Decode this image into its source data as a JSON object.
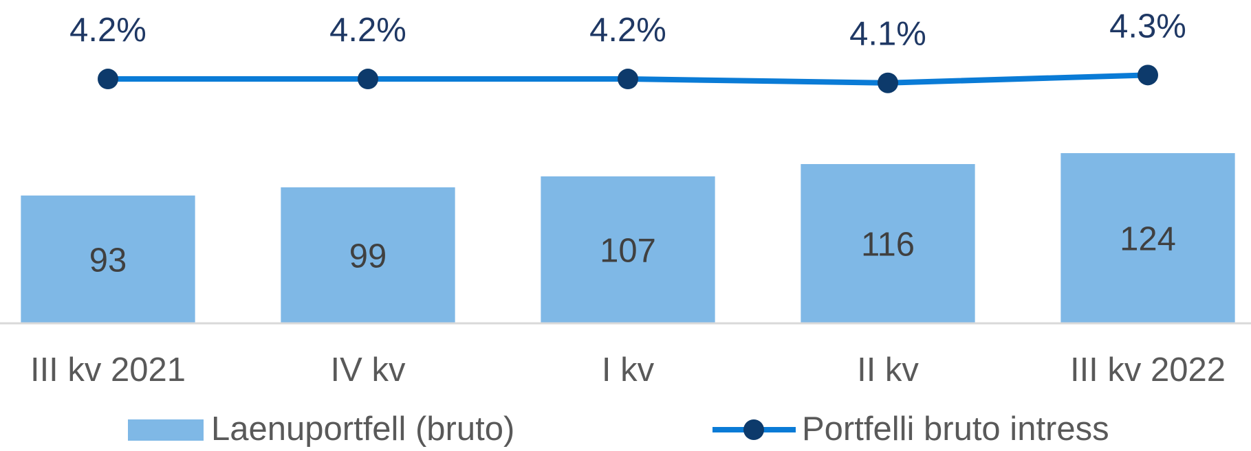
{
  "chart_data": {
    "type": "bar",
    "categories": [
      "III kv 2021",
      "IV kv",
      "I kv",
      "II kv",
      "III kv 2022"
    ],
    "series": [
      {
        "name": "Laenuportfell (bruto)",
        "type": "bar",
        "color": "#7fb8e6",
        "values": [
          93,
          99,
          107,
          116,
          124
        ]
      },
      {
        "name": "Portfelli bruto intress",
        "type": "line",
        "axis": "y2",
        "color": "#0a7bd6",
        "marker_color": "#0d3a6b",
        "values": [
          4.2,
          4.2,
          4.2,
          4.1,
          4.3
        ],
        "value_labels": [
          "4.2%",
          "4.2%",
          "4.2%",
          "4.1%",
          "4.3%"
        ]
      }
    ],
    "ylim": [
      0,
      230
    ],
    "y2lim": [
      -2,
      6
    ],
    "legend": "bottom",
    "grid": false
  }
}
